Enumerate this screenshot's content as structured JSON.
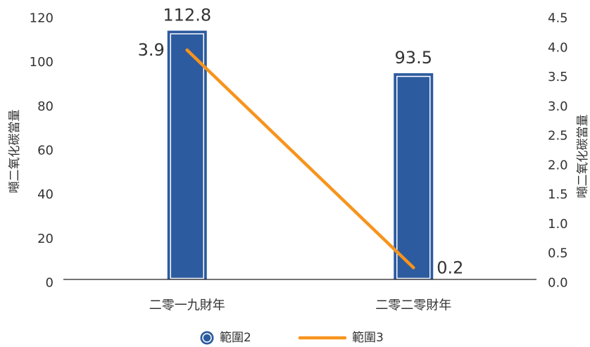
{
  "chart_data": {
    "type": "bar",
    "categories": [
      "二零一九財年",
      "二零二零財年"
    ],
    "series": [
      {
        "name": "範圍2",
        "type": "bar",
        "axis": "left",
        "values": [
          112.8,
          93.5
        ],
        "color": "#2d5b9f"
      },
      {
        "name": "範圍3",
        "type": "line",
        "axis": "right",
        "values": [
          3.9,
          0.2
        ],
        "color": "#f7941d"
      }
    ],
    "y_left": {
      "label": "噸二氧化碳當量",
      "ylim": [
        0,
        120
      ],
      "ticks": [
        "0",
        "20",
        "40",
        "60",
        "80",
        "100",
        "120"
      ]
    },
    "y_right": {
      "label": "噸二氧化碳當量",
      "ylim": [
        0,
        4.5
      ],
      "ticks": [
        "0.0",
        "0.5",
        "1.0",
        "1.5",
        "2.0",
        "2.5",
        "3.0",
        "3.5",
        "4.0",
        "4.5"
      ]
    },
    "data_labels": true,
    "legend": "bottom",
    "grid": false
  }
}
